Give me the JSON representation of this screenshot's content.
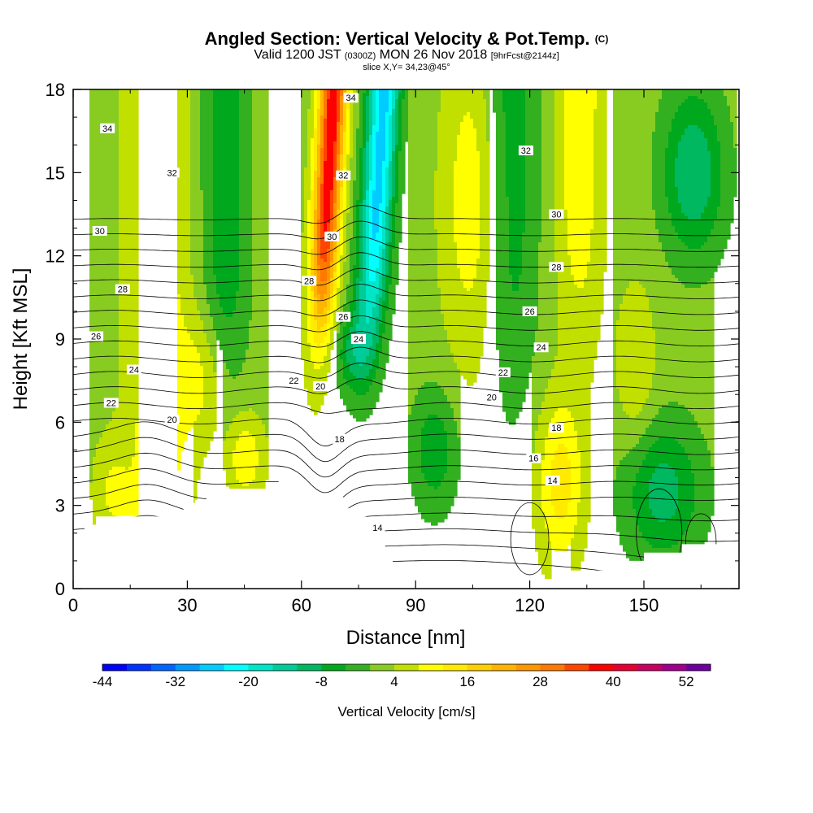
{
  "title": {
    "main": "Angled Section: Vertical Velocity & Pot.Temp.",
    "copyright": "(C)",
    "valid_prefix": "Valid 1200 JST",
    "valid_utc": "(0300Z)",
    "valid_date": "MON 26 Nov 2018",
    "forecast": "[9hrFcst@2144z]",
    "slice": "slice X,Y= 34,23@45°"
  },
  "chart_data": {
    "type": "heatmap",
    "xlabel": "Distance [nm]",
    "ylabel": "Height [Kft MSL]",
    "xlim": [
      0,
      175
    ],
    "ylim": [
      0,
      18
    ],
    "x_ticks": [
      0,
      30,
      60,
      90,
      120,
      150
    ],
    "y_ticks": [
      0,
      3,
      6,
      9,
      12,
      15,
      18
    ],
    "color_field": "Vertical Velocity [cm/s]",
    "colorbar": {
      "label": "Vertical Velocity [cm/s]",
      "tick_labels": [
        "-44",
        "-32",
        "-20",
        "-8",
        "4",
        "16",
        "28",
        "40",
        "52"
      ],
      "levels": [
        -44,
        -40,
        -36,
        -32,
        -28,
        -24,
        -20,
        -16,
        -12,
        -8,
        -4,
        0,
        4,
        8,
        12,
        16,
        20,
        24,
        28,
        32,
        36,
        40,
        44,
        48,
        52,
        56
      ],
      "colors": [
        "#0000ff",
        "#0033ff",
        "#0066ff",
        "#0099ff",
        "#00ccff",
        "#00ffff",
        "#00e6c8",
        "#00cc99",
        "#00b860",
        "#00a81e",
        "#33b020",
        "#88cc22",
        "#c2e000",
        "#ffff00",
        "#ffea00",
        "#ffd000",
        "#ffb400",
        "#ff9600",
        "#ff7800",
        "#ff4600",
        "#ff0000",
        "#e60033",
        "#c80064",
        "#a0008c",
        "#6e00a0"
      ]
    },
    "contour_field": "Potential Temperature",
    "contour_levels": [
      13,
      14,
      15,
      16,
      17,
      18,
      19,
      20,
      21,
      22,
      23,
      24,
      25,
      26,
      27,
      28,
      29,
      30,
      31,
      32,
      33,
      34,
      35
    ],
    "contour_labels": [
      {
        "x": 9,
        "y": 16.6,
        "text": "34"
      },
      {
        "x": 73,
        "y": 17.7,
        "text": "34"
      },
      {
        "x": 26,
        "y": 15.0,
        "text": "32"
      },
      {
        "x": 71,
        "y": 14.9,
        "text": "32"
      },
      {
        "x": 119,
        "y": 15.8,
        "text": "32"
      },
      {
        "x": 7,
        "y": 12.9,
        "text": "30"
      },
      {
        "x": 68,
        "y": 12.7,
        "text": "30"
      },
      {
        "x": 127,
        "y": 13.5,
        "text": "30"
      },
      {
        "x": 13,
        "y": 10.8,
        "text": "28"
      },
      {
        "x": 62,
        "y": 11.1,
        "text": "28"
      },
      {
        "x": 127,
        "y": 11.6,
        "text": "28"
      },
      {
        "x": 6,
        "y": 9.1,
        "text": "26"
      },
      {
        "x": 71,
        "y": 9.8,
        "text": "26"
      },
      {
        "x": 120,
        "y": 10.0,
        "text": "26"
      },
      {
        "x": 16,
        "y": 7.9,
        "text": "24"
      },
      {
        "x": 75,
        "y": 9.0,
        "text": "24"
      },
      {
        "x": 123,
        "y": 8.7,
        "text": "24"
      },
      {
        "x": 10,
        "y": 6.7,
        "text": "22"
      },
      {
        "x": 58,
        "y": 7.5,
        "text": "22"
      },
      {
        "x": 113,
        "y": 7.8,
        "text": "22"
      },
      {
        "x": 26,
        "y": 6.1,
        "text": "20"
      },
      {
        "x": 65,
        "y": 7.3,
        "text": "20"
      },
      {
        "x": 110,
        "y": 6.9,
        "text": "20"
      },
      {
        "x": 70,
        "y": 5.4,
        "text": "18"
      },
      {
        "x": 127,
        "y": 5.8,
        "text": "18"
      },
      {
        "x": 121,
        "y": 4.7,
        "text": "16"
      },
      {
        "x": 126,
        "y": 3.9,
        "text": "14"
      },
      {
        "x": 80,
        "y": 2.2,
        "text": "14"
      }
    ],
    "terrain": [
      [
        0,
        2.0
      ],
      [
        3,
        2.0
      ],
      [
        3,
        2.3
      ],
      [
        6,
        2.3
      ],
      [
        6,
        2.6
      ],
      [
        19,
        2.6
      ],
      [
        19,
        2.6
      ],
      [
        29,
        2.6
      ],
      [
        29,
        2.9
      ],
      [
        32,
        2.9
      ],
      [
        32,
        3.2
      ],
      [
        35,
        3.2
      ],
      [
        35,
        3.6
      ],
      [
        54,
        3.6
      ],
      [
        54,
        3.9
      ],
      [
        60,
        3.9
      ],
      [
        60,
        3.6
      ],
      [
        62,
        3.6
      ],
      [
        62,
        3.3
      ],
      [
        71,
        3.3
      ],
      [
        71,
        2.9
      ],
      [
        74,
        2.9
      ],
      [
        74,
        2.6
      ],
      [
        77,
        2.6
      ],
      [
        77,
        2.3
      ],
      [
        80,
        2.3
      ],
      [
        80,
        1.6
      ],
      [
        82,
        1.6
      ],
      [
        82,
        1.0
      ],
      [
        84,
        1.0
      ],
      [
        84,
        0.7
      ],
      [
        87,
        0.7
      ],
      [
        87,
        0.35
      ],
      [
        129,
        0.35
      ],
      [
        129,
        0.65
      ],
      [
        143,
        0.65
      ],
      [
        143,
        1.0
      ],
      [
        150,
        1.0
      ],
      [
        150,
        1.3
      ],
      [
        160,
        1.3
      ],
      [
        160,
        1.6
      ],
      [
        175,
        1.6
      ]
    ]
  }
}
